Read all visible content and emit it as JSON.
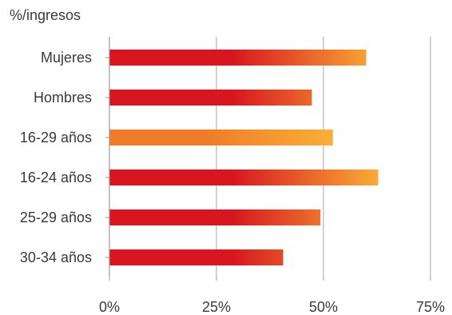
{
  "chart_data": {
    "type": "bar",
    "orientation": "horizontal",
    "unit_label": "%/ingresos",
    "categories": [
      "Mujeres",
      "Hombres",
      "16-29 años",
      "16-24 años",
      "25-29 años",
      "30-34 años"
    ],
    "values": [
      60,
      47.3,
      52.2,
      62.8,
      49.3,
      40.6
    ],
    "highlighted_category": "16-29 años",
    "xlim": [
      0,
      75
    ],
    "xticks": [
      0,
      25,
      50,
      75
    ],
    "xtick_labels": [
      "0%",
      "25%",
      "50%",
      "75%"
    ],
    "grid": "vertical",
    "colors": {
      "bar_start": "#d7161f",
      "bar_end": "#fbb036",
      "highlight_start": "#f07c29",
      "highlight_end": "#fbb638",
      "axis": "#9a9a9a",
      "grid": "#a6a6a6",
      "text": "#3a3a3a"
    }
  }
}
